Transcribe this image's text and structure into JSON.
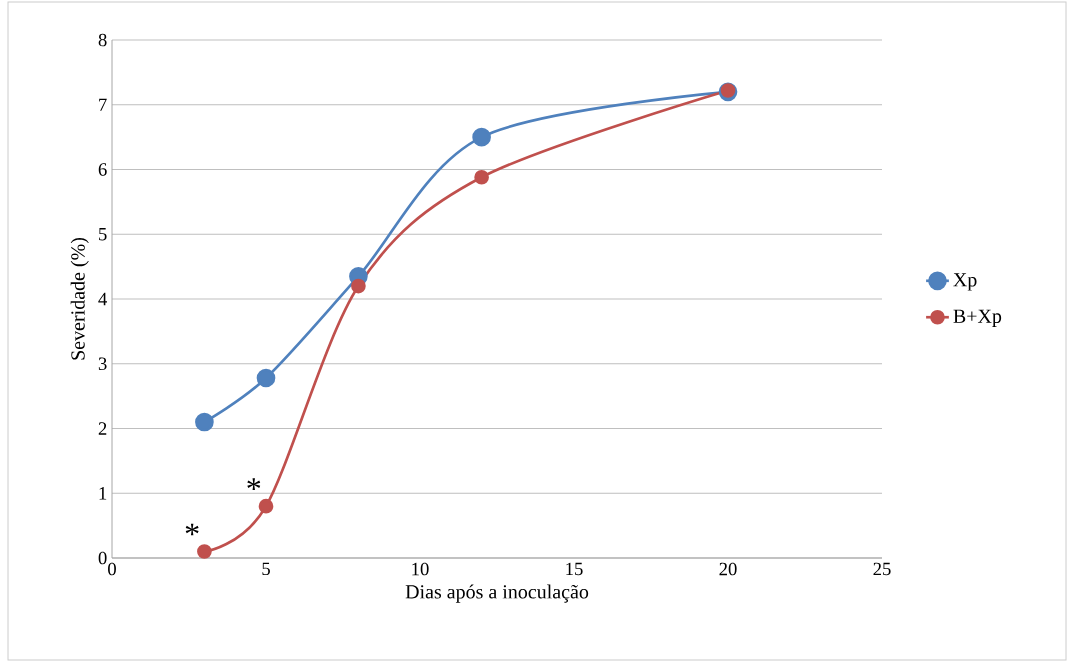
{
  "chart_data": {
    "type": "line",
    "xlabel": "Dias após a inoculação",
    "ylabel": "Severidade (%)",
    "x": [
      3,
      5,
      8,
      12,
      20
    ],
    "series": [
      {
        "name": "Xp",
        "color": "#4f81bd",
        "values": [
          2.1,
          2.78,
          4.35,
          6.5,
          7.2
        ]
      },
      {
        "name": "B+Xp",
        "color": "#c0504d",
        "values": [
          0.1,
          0.8,
          4.2,
          5.88,
          7.22
        ]
      }
    ],
    "xlim": [
      0,
      25
    ],
    "xticks": [
      0,
      5,
      10,
      15,
      20,
      25
    ],
    "ylim": [
      0,
      8
    ],
    "yticks": [
      0,
      1,
      2,
      3,
      4,
      5,
      6,
      7,
      8
    ],
    "grid": "y",
    "legend": "right",
    "marker": "circle",
    "line_style": "solid",
    "annotations": [
      {
        "text": "*",
        "x": 3,
        "y": 0.1
      },
      {
        "text": "*",
        "x": 5,
        "y": 0.8
      }
    ]
  }
}
